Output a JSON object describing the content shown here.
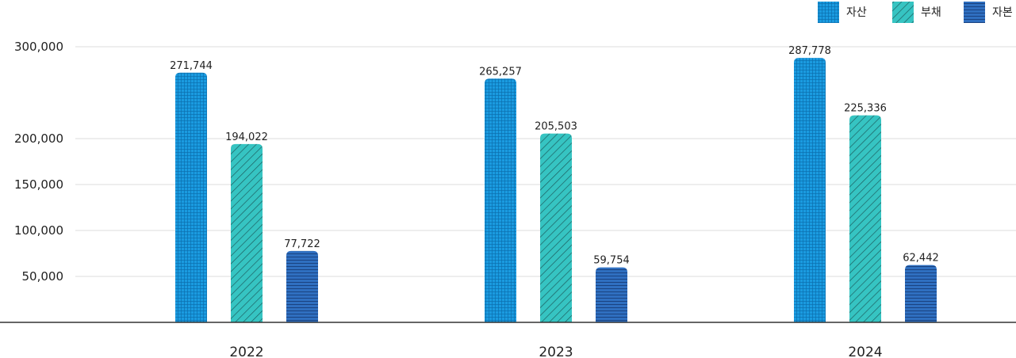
{
  "chart_data": {
    "type": "bar",
    "categories": [
      "2022",
      "2023",
      "2024"
    ],
    "series": [
      {
        "name": "자산",
        "values": [
          271744,
          265257,
          287778
        ],
        "labels": [
          "271,744",
          "265,257",
          "287,778"
        ],
        "color": "#1a9be0",
        "pattern": "grid"
      },
      {
        "name": "부채",
        "values": [
          194022,
          205503,
          225336
        ],
        "labels": [
          "194,022",
          "205,503",
          "225,336"
        ],
        "color": "#36c4c2",
        "pattern": "diagonal"
      },
      {
        "name": "자본",
        "values": [
          77722,
          59754,
          62442
        ],
        "labels": [
          "77,722",
          "59,754",
          "62,442"
        ],
        "color": "#2f6fc0",
        "pattern": "horizontal"
      }
    ],
    "y_ticks": [
      {
        "value": 50000,
        "label": "50,000"
      },
      {
        "value": 100000,
        "label": "100,000"
      },
      {
        "value": 150000,
        "label": "150,000"
      },
      {
        "value": 200000,
        "label": "200,000"
      },
      {
        "value": 300000,
        "label": "300,000"
      }
    ],
    "ylim": [
      0,
      300000
    ],
    "grid": true,
    "legend": "top-right",
    "title": "",
    "xlabel": "",
    "ylabel": ""
  }
}
